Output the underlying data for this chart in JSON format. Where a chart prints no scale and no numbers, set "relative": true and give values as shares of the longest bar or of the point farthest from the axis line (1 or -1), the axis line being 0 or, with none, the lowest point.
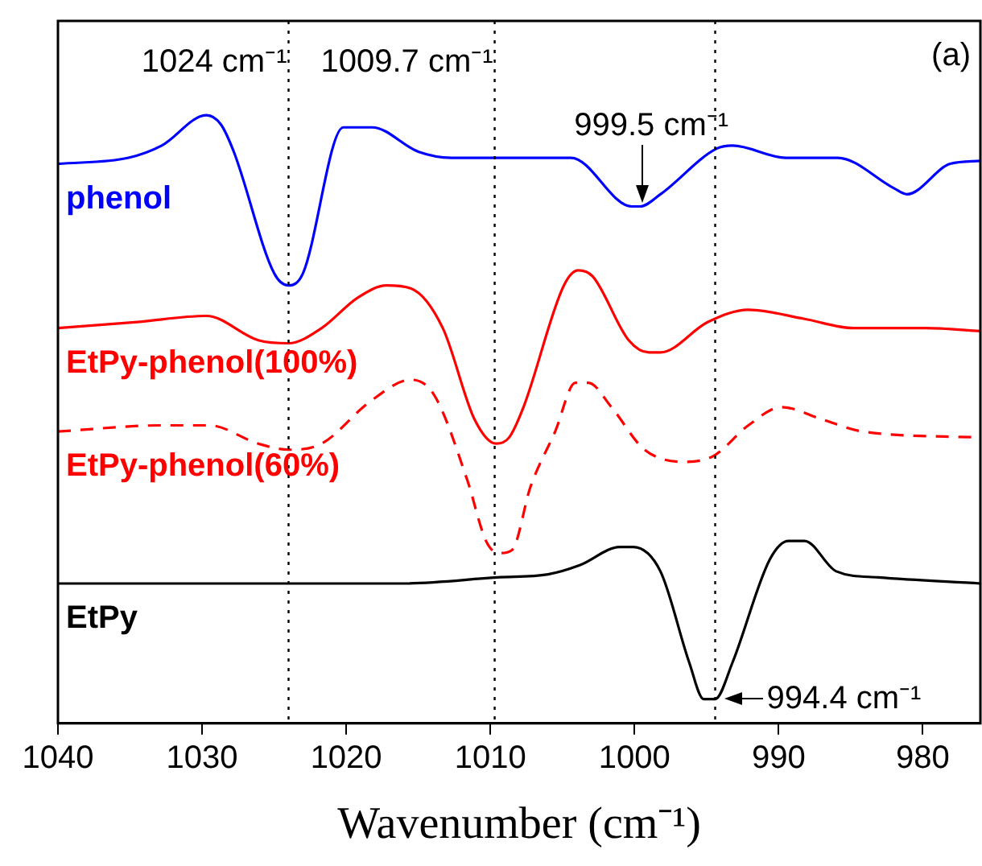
{
  "chart_data": {
    "type": "line",
    "relative": true,
    "xlabel": "Wavenumber (cm⁻¹)",
    "xlim": [
      1040,
      976
    ],
    "xticks": [
      1040,
      1030,
      1020,
      1010,
      1000,
      990,
      980
    ],
    "tick_labels": "x",
    "grid": false,
    "legend": false,
    "marker": "none",
    "series": [
      {
        "name": "phenol",
        "color": "#0000ff",
        "line_style": "solid",
        "x": [
          1040,
          1035.1,
          1032.8,
          1029.7,
          1028.7,
          1027.8,
          1025.0,
          1024.0,
          1023.0,
          1020.2,
          1018.2,
          1015.0,
          1012.7,
          1009.5,
          1005.5,
          1004.4,
          1000.2,
          999.6,
          998.2,
          994.3,
          993.2,
          989.5,
          985.9,
          982.0,
          981.1,
          978.1,
          976
        ],
        "values": [
          0.92,
          0.93,
          0.95,
          1.0,
          0.985,
          0.94,
          0.74,
          0.72,
          0.74,
          0.98,
          0.98,
          0.94,
          0.93,
          0.93,
          0.93,
          0.93,
          0.85,
          0.85,
          0.87,
          0.945,
          0.95,
          0.93,
          0.93,
          0.88,
          0.87,
          0.92,
          0.925
        ]
      },
      {
        "name": "EtPy-phenol(100%)",
        "color": "#ff0000",
        "line_style": "solid",
        "x": [
          1040,
          1034.5,
          1029.7,
          1026.1,
          1024.0,
          1021.7,
          1019.2,
          1017.2,
          1015.5,
          1013.3,
          1011.1,
          1009.6,
          1008.7,
          1007.7,
          1004.9,
          1003.9,
          1002.9,
          1000.4,
          999.0,
          998.2,
          994.9,
          992.1,
          988.2,
          984.8,
          979.8,
          976
        ],
        "values": [
          0.65,
          0.66,
          0.67,
          0.63,
          0.625,
          0.65,
          0.7,
          0.72,
          0.715,
          0.65,
          0.5,
          0.46,
          0.47,
          0.52,
          0.72,
          0.745,
          0.735,
          0.63,
          0.61,
          0.61,
          0.66,
          0.68,
          0.665,
          0.65,
          0.65,
          0.645
        ]
      },
      {
        "name": "EtPy-phenol(60%)",
        "color": "#ff0000",
        "line_style": "dashed",
        "x": [
          1040,
          1032.8,
          1029.5,
          1026.1,
          1024.0,
          1021.7,
          1018.3,
          1015.5,
          1013.9,
          1011.6,
          1010.3,
          1009.4,
          1008.5,
          1007.2,
          1005.5,
          1004.1,
          1003.2,
          1001.6,
          999.3,
          996.5,
          994.5,
          992.1,
          989.8,
          987.0,
          984.2,
          976
        ],
        "values": [
          0.48,
          0.49,
          0.49,
          0.46,
          0.45,
          0.46,
          0.53,
          0.565,
          0.54,
          0.4,
          0.3,
          0.28,
          0.285,
          0.39,
          0.48,
          0.56,
          0.56,
          0.52,
          0.45,
          0.43,
          0.44,
          0.49,
          0.52,
          0.5,
          0.48,
          0.47
        ]
      },
      {
        "name": "EtPy",
        "color": "#000000",
        "line_style": "solid",
        "x": [
          1040,
          1027.3,
          1016.1,
          1009.5,
          1006.0,
          1003.8,
          1001.0,
          1000.1,
          998.2,
          996.2,
          995.2,
          994.4,
          993.2,
          990.6,
          989.3,
          988.2,
          986.0,
          983.1,
          976
        ],
        "values": [
          0.23,
          0.23,
          0.23,
          0.24,
          0.245,
          0.26,
          0.29,
          0.29,
          0.25,
          0.1,
          0.04,
          0.04,
          0.1,
          0.27,
          0.3,
          0.3,
          0.25,
          0.24,
          0.23
        ]
      }
    ],
    "ref_lines": [
      {
        "axis": "x",
        "value": 1024,
        "label": "1024 cm⁻¹",
        "line_style": "dotted",
        "color": "#000000"
      },
      {
        "axis": "x",
        "value": 1009.7,
        "label": "1009.7 cm⁻¹",
        "line_style": "dotted",
        "color": "#000000"
      },
      {
        "axis": "x",
        "value": 994.4,
        "line_style": "dotted",
        "color": "#000000"
      }
    ],
    "annotations": [
      {
        "text": "999.5 cm⁻¹",
        "x": 999.5,
        "y": 0.85
      },
      {
        "text": "994.4 cm⁻¹",
        "x": 994.4,
        "y": 0.04
      },
      "(a)"
    ]
  }
}
